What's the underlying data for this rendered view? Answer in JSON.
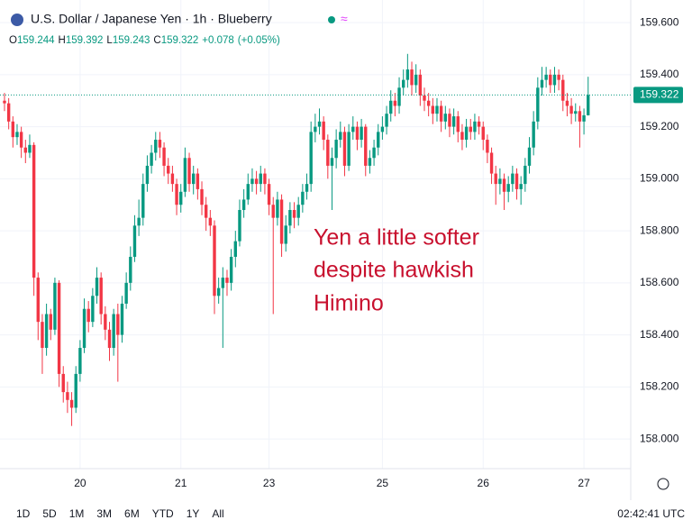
{
  "chart_data": {
    "type": "candlestick",
    "title": "U.S. Dollar / Japanese Yen · 1h · Blueberry",
    "ohlc_letters": [
      "O",
      "H",
      "L",
      "C"
    ],
    "change": "+0.078",
    "change_pct": "(+0.05%)",
    "annotation": [
      "Yen a little softer",
      "despite hawkish",
      "Himino"
    ],
    "up_color": "#089981",
    "down_color": "#f23645",
    "ylim": [
      157.886,
      159.687
    ],
    "yticks": [
      {
        "value": 158,
        "label": "158.000"
      },
      {
        "value": 158.2,
        "label": "158.200"
      },
      {
        "value": 158.4,
        "label": "158.400"
      },
      {
        "value": 158.6,
        "label": "158.600"
      },
      {
        "value": 158.8,
        "label": "158.800"
      },
      {
        "value": 159,
        "label": "159.000"
      },
      {
        "value": 159.2,
        "label": "159.200"
      },
      {
        "value": 159.4,
        "label": "159.400"
      },
      {
        "value": 159.6,
        "label": "159.600"
      }
    ],
    "grid": true,
    "categories": [
      null,
      null,
      null,
      null,
      null,
      null,
      null,
      null,
      null,
      null,
      null,
      null,
      null,
      null,
      null,
      null,
      null,
      null,
      "20",
      null,
      null,
      null,
      null,
      null,
      null,
      null,
      null,
      null,
      null,
      null,
      null,
      null,
      null,
      null,
      null,
      null,
      null,
      null,
      null,
      null,
      null,
      null,
      "21",
      null,
      null,
      null,
      null,
      null,
      null,
      null,
      null,
      null,
      null,
      null,
      null,
      null,
      null,
      null,
      null,
      null,
      null,
      null,
      null,
      "23",
      null,
      null,
      null,
      null,
      null,
      null,
      null,
      null,
      null,
      null,
      null,
      null,
      null,
      null,
      null,
      null,
      null,
      null,
      null,
      null,
      null,
      null,
      null,
      null,
      null,
      null,
      "25",
      null,
      null,
      null,
      null,
      null,
      null,
      null,
      null,
      null,
      null,
      null,
      null,
      null,
      null,
      null,
      null,
      null,
      null,
      null,
      null,
      null,
      null,
      null,
      "26",
      null,
      null,
      null,
      null,
      null,
      null,
      null,
      null,
      null,
      null,
      null,
      null,
      null,
      null,
      null,
      null,
      null,
      null,
      null,
      null,
      null,
      null,
      null,
      "27",
      null
    ],
    "open": [
      159.3,
      159.29,
      159.22,
      159.16,
      159.18,
      159.12,
      159.1,
      159.13,
      158.62,
      158.45,
      158.35,
      158.48,
      158.42,
      158.6,
      158.25,
      158.18,
      158.15,
      158.12,
      158.25,
      158.35,
      158.5,
      158.45,
      158.55,
      158.62,
      158.48,
      158.42,
      158.35,
      158.48,
      158.4,
      158.52,
      158.6,
      158.7,
      158.82,
      158.85,
      158.98,
      159.05,
      159.1,
      159.15,
      159.12,
      159.05,
      159.02,
      158.98,
      158.9,
      158.95,
      159.08,
      158.98,
      159.02,
      158.96,
      158.9,
      158.85,
      158.82,
      158.55,
      158.58,
      158.62,
      158.6,
      158.7,
      158.76,
      158.88,
      158.92,
      158.98,
      159.0,
      158.98,
      159.02,
      158.98,
      158.9,
      158.85,
      158.92,
      158.75,
      158.82,
      158.88,
      158.85,
      158.9,
      158.95,
      158.98,
      159.18,
      159.2,
      159.22,
      159.15,
      159.05,
      159.08,
      159.15,
      159.18,
      159.05,
      159.18,
      159.2,
      159.15,
      159.2,
      159.05,
      159.08,
      159.12,
      159.18,
      159.2,
      159.25,
      159.3,
      159.28,
      159.35,
      159.38,
      159.42,
      159.36,
      159.4,
      159.32,
      159.3,
      159.28,
      159.25,
      159.28,
      159.22,
      159.25,
      159.2,
      159.24,
      159.18,
      159.15,
      159.2,
      159.18,
      159.22,
      159.2,
      159.15,
      159.1,
      159.02,
      158.98,
      159.0,
      158.95,
      158.98,
      159.02,
      158.96,
      158.98,
      159.05,
      159.12,
      159.22,
      159.35,
      159.38,
      159.4,
      159.36,
      159.4,
      159.38,
      159.3,
      159.28,
      159.25,
      159.26,
      159.22,
      159.244
    ],
    "high": [
      159.33,
      159.31,
      159.24,
      159.21,
      159.2,
      159.15,
      159.17,
      159.14,
      158.64,
      158.48,
      158.52,
      158.5,
      158.62,
      158.61,
      158.28,
      158.22,
      158.18,
      158.28,
      158.38,
      158.54,
      158.53,
      158.58,
      158.66,
      158.64,
      158.51,
      158.45,
      158.5,
      158.52,
      158.55,
      158.64,
      158.74,
      158.86,
      158.92,
      159.02,
      159.09,
      159.13,
      159.18,
      159.18,
      159.14,
      159.08,
      159.05,
      159.0,
      158.98,
      159.12,
      159.1,
      159.05,
      159.04,
      158.99,
      158.93,
      158.88,
      158.84,
      158.62,
      158.66,
      158.65,
      158.73,
      158.8,
      158.92,
      158.96,
      159.02,
      159.04,
      159.03,
      159.05,
      159.04,
      159.0,
      158.93,
      158.95,
      158.94,
      158.86,
      158.91,
      158.91,
      158.93,
      158.98,
      159.02,
      159.22,
      159.25,
      159.27,
      159.24,
      159.17,
      159.12,
      159.19,
      159.22,
      159.2,
      159.21,
      159.24,
      159.22,
      159.23,
      159.21,
      159.11,
      159.15,
      159.21,
      159.24,
      159.28,
      159.34,
      159.33,
      159.39,
      159.42,
      159.48,
      159.45,
      159.44,
      159.42,
      159.35,
      159.33,
      159.31,
      159.31,
      159.3,
      159.28,
      159.27,
      159.27,
      159.26,
      159.21,
      159.23,
      159.23,
      159.25,
      159.24,
      159.22,
      159.17,
      159.12,
      159.05,
      159.04,
      159.02,
      159.01,
      159.05,
      159.04,
      159.01,
      159.08,
      159.16,
      159.26,
      159.39,
      159.43,
      159.43,
      159.42,
      159.43,
      159.42,
      159.4,
      159.33,
      159.31,
      159.29,
      159.28,
      159.27,
      159.392
    ],
    "low": [
      159.26,
      159.19,
      159.12,
      159.13,
      159.08,
      159.06,
      159.08,
      158.55,
      158.38,
      158.25,
      158.32,
      158.38,
      158.4,
      158.2,
      158.14,
      158.1,
      158.05,
      158.1,
      158.22,
      158.33,
      158.41,
      158.43,
      158.52,
      158.44,
      158.38,
      158.3,
      158.32,
      158.22,
      158.37,
      158.5,
      158.57,
      158.68,
      158.78,
      158.82,
      158.95,
      159.02,
      159.07,
      159.08,
      159.01,
      158.98,
      158.95,
      158.86,
      158.87,
      158.93,
      158.95,
      158.94,
      158.92,
      158.86,
      158.8,
      158.78,
      158.48,
      158.52,
      158.35,
      158.55,
      158.57,
      158.66,
      158.74,
      158.85,
      158.9,
      158.95,
      158.94,
      158.95,
      158.94,
      158.86,
      158.48,
      158.82,
      158.7,
      158.72,
      158.79,
      158.81,
      158.82,
      158.87,
      158.92,
      158.95,
      159.14,
      159.17,
      159.11,
      159.0,
      158.88,
      159.04,
      159.12,
      159.01,
      159.03,
      159.15,
      159.11,
      159.12,
      159.01,
      159.02,
      159.05,
      159.09,
      159.15,
      159.17,
      159.22,
      159.24,
      159.25,
      159.32,
      159.35,
      159.32,
      159.33,
      159.28,
      159.26,
      159.24,
      159.21,
      159.22,
      159.18,
      159.19,
      159.16,
      159.17,
      159.14,
      159.11,
      159.12,
      159.15,
      159.15,
      159.17,
      159.11,
      159.06,
      158.98,
      158.9,
      158.94,
      158.88,
      158.91,
      158.95,
      158.92,
      158.9,
      158.95,
      159.02,
      159.09,
      159.19,
      159.32,
      159.35,
      159.33,
      159.33,
      159.34,
      159.26,
      159.24,
      159.21,
      159.22,
      159.12,
      159.17,
      159.243
    ],
    "close": [
      159.29,
      159.22,
      159.16,
      159.18,
      159.12,
      159.1,
      159.13,
      158.62,
      158.45,
      158.35,
      158.48,
      158.42,
      158.6,
      158.25,
      158.18,
      158.15,
      158.12,
      158.25,
      158.35,
      158.5,
      158.45,
      158.55,
      158.62,
      158.48,
      158.42,
      158.35,
      158.48,
      158.4,
      158.52,
      158.6,
      158.7,
      158.82,
      158.85,
      158.98,
      159.05,
      159.1,
      159.15,
      159.12,
      159.05,
      159.02,
      158.98,
      158.9,
      158.95,
      159.08,
      158.98,
      159.02,
      158.96,
      158.9,
      158.85,
      158.82,
      158.55,
      158.58,
      158.62,
      158.6,
      158.7,
      158.76,
      158.88,
      158.92,
      158.98,
      159.0,
      158.98,
      159.02,
      158.98,
      158.9,
      158.85,
      158.92,
      158.75,
      158.82,
      158.88,
      158.85,
      158.9,
      158.95,
      158.98,
      159.18,
      159.2,
      159.22,
      159.15,
      159.05,
      159.08,
      159.15,
      159.18,
      159.05,
      159.18,
      159.2,
      159.15,
      159.2,
      159.05,
      159.08,
      159.12,
      159.18,
      159.2,
      159.25,
      159.3,
      159.28,
      159.35,
      159.38,
      159.42,
      159.36,
      159.4,
      159.32,
      159.3,
      159.28,
      159.25,
      159.28,
      159.22,
      159.25,
      159.2,
      159.24,
      159.18,
      159.15,
      159.2,
      159.18,
      159.22,
      159.2,
      159.15,
      159.1,
      159.02,
      158.98,
      159.0,
      158.95,
      158.98,
      159.02,
      158.96,
      158.98,
      159.05,
      159.12,
      159.22,
      159.35,
      159.38,
      159.4,
      159.36,
      159.4,
      159.38,
      159.3,
      159.28,
      159.25,
      159.26,
      159.22,
      159.244,
      159.322
    ],
    "ranges": [
      "1D",
      "5D",
      "1M",
      "3M",
      "6M",
      "YTD",
      "1Y",
      "All"
    ],
    "clock": "02:42:41 UTC"
  }
}
